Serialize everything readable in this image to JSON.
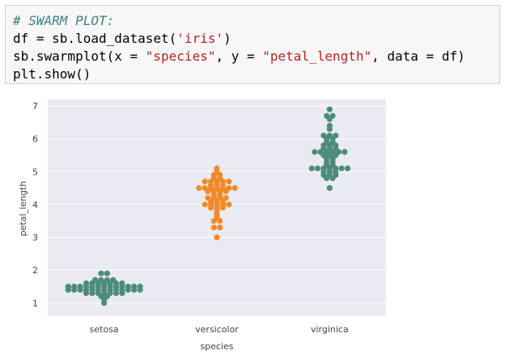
{
  "code_cell": {
    "lines": [
      {
        "comment": "# SWARM PLOT:"
      },
      {
        "prefix": "df = sb.load_dataset(",
        "string": "'iris'",
        "suffix": ")"
      },
      {
        "prefix": "sb.swarmplot(x = ",
        "string": "\"species\"",
        "mid": ", y = ",
        "string2": "\"petal_length\"",
        "suffix": ", data = df)"
      },
      {
        "prefix": "plt.show()"
      }
    ]
  },
  "chart_data": {
    "type": "scatter",
    "subtype": "swarm",
    "title": "",
    "xlabel": "species",
    "ylabel": "petal_length",
    "categories": [
      "setosa",
      "versicolor",
      "virginica"
    ],
    "ylim": [
      0.6,
      7.2
    ],
    "yticks": [
      1,
      2,
      3,
      4,
      5,
      6,
      7
    ],
    "grid": true,
    "background": "#eaeaf2",
    "series": [
      {
        "category": "setosa",
        "color": "#4c8c7a",
        "values": [
          1.4,
          1.4,
          1.3,
          1.5,
          1.4,
          1.7,
          1.4,
          1.5,
          1.4,
          1.5,
          1.5,
          1.6,
          1.4,
          1.1,
          1.2,
          1.5,
          1.3,
          1.4,
          1.7,
          1.5,
          1.7,
          1.5,
          1.0,
          1.7,
          1.9,
          1.6,
          1.6,
          1.5,
          1.4,
          1.6,
          1.6,
          1.5,
          1.5,
          1.4,
          1.5,
          1.2,
          1.3,
          1.4,
          1.3,
          1.5,
          1.3,
          1.3,
          1.3,
          1.6,
          1.9,
          1.4,
          1.6,
          1.4,
          1.5,
          1.4
        ]
      },
      {
        "category": "versicolor",
        "color": "#f28a2a",
        "values": [
          4.7,
          4.5,
          4.9,
          4.0,
          4.6,
          4.5,
          4.7,
          3.3,
          4.6,
          3.9,
          3.5,
          4.2,
          4.0,
          4.7,
          3.6,
          4.4,
          4.5,
          4.1,
          4.5,
          3.9,
          4.8,
          4.0,
          4.9,
          4.7,
          4.3,
          4.4,
          4.8,
          5.0,
          4.5,
          3.5,
          3.8,
          3.7,
          3.9,
          5.1,
          4.5,
          4.5,
          4.7,
          4.4,
          4.1,
          4.0,
          4.4,
          4.6,
          4.0,
          3.3,
          4.2,
          4.2,
          4.2,
          4.3,
          3.0,
          4.1
        ]
      },
      {
        "category": "virginica",
        "color": "#4c8c7a",
        "values": [
          6.0,
          5.1,
          5.9,
          5.6,
          5.8,
          6.6,
          4.5,
          6.3,
          5.8,
          6.1,
          5.1,
          5.3,
          5.5,
          5.0,
          5.1,
          5.3,
          5.5,
          6.7,
          6.9,
          5.0,
          5.7,
          4.9,
          6.7,
          4.9,
          5.7,
          6.0,
          4.8,
          4.9,
          5.6,
          5.8,
          6.1,
          6.4,
          5.6,
          5.1,
          5.6,
          6.1,
          5.6,
          5.5,
          4.8,
          5.4,
          5.6,
          5.1,
          5.1,
          5.9,
          5.7,
          5.2,
          5.0,
          5.2,
          5.4,
          5.1
        ]
      }
    ]
  }
}
